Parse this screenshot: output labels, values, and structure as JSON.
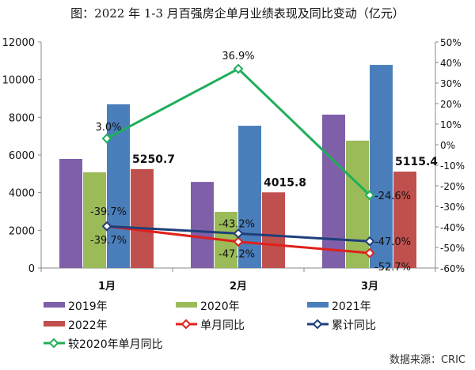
{
  "chart_data": {
    "type": "bar",
    "title": "图：2022 年 1-3 月百强房企单月业绩表现及同比变动（亿元）",
    "source": "数据来源：CRIC",
    "categories": [
      "1月",
      "2月",
      "3月"
    ],
    "left_axis": {
      "ylim": [
        0,
        12000
      ],
      "ticks": [
        "0",
        "2000",
        "4000",
        "6000",
        "8000",
        "10000",
        "12000"
      ]
    },
    "right_axis": {
      "ylim": [
        -60,
        50
      ],
      "ticks": [
        "-60%",
        "-50%",
        "-40%",
        "-30%",
        "-20%",
        "-10%",
        "0%",
        "10%",
        "20%",
        "30%",
        "40%",
        "50%"
      ]
    },
    "bar_series": [
      {
        "name": "2019年",
        "color": "#7f5fa8",
        "values": [
          5790,
          4570,
          8140
        ]
      },
      {
        "name": "2020年",
        "color": "#9bbb59",
        "values": [
          5080,
          2980,
          6760
        ]
      },
      {
        "name": "2021年",
        "color": "#4a7ebb",
        "values": [
          8690,
          7550,
          10780
        ]
      },
      {
        "name": "2022年",
        "color": "#c0504d",
        "values": [
          5250.7,
          4015.8,
          5115.4
        ],
        "labels": [
          "5250.7",
          "4015.8",
          "5115.4"
        ]
      }
    ],
    "line_series": [
      {
        "name": "单月同比",
        "color": "#e0201b",
        "values": [
          -39.7,
          -47.2,
          -52.7
        ],
        "labels": [
          "-39.7%",
          "-47.2%",
          "-52.7%"
        ]
      },
      {
        "name": "累计同比",
        "color": "#1f3f7a",
        "values": [
          -39.7,
          -43.2,
          -47.0
        ],
        "labels": [
          "-39.7%",
          "-43.2%",
          "-47.0%"
        ]
      },
      {
        "name": "较2020年单月同比",
        "color": "#1fae5a",
        "values": [
          3.0,
          36.9,
          -24.6
        ],
        "labels": [
          "3.0%",
          "36.9%",
          "-24.6%"
        ]
      }
    ],
    "grid": false,
    "legend": "bottom"
  }
}
